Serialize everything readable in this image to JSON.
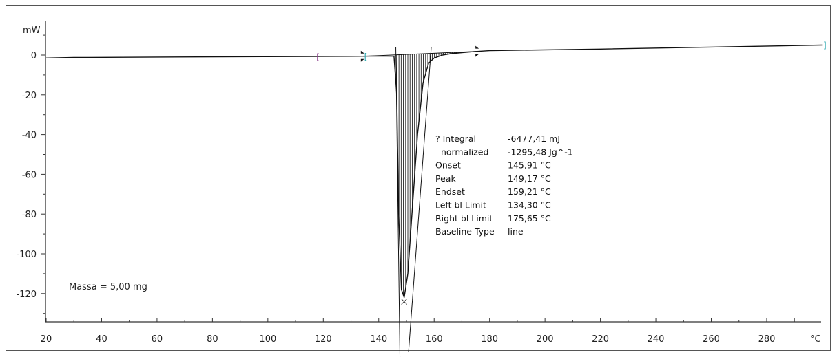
{
  "chart_data": {
    "type": "line",
    "xlabel": "°C",
    "ylabel": "mW",
    "xlim": [
      20,
      300
    ],
    "ylim": [
      -135,
      14
    ],
    "xticks": [
      20,
      40,
      60,
      80,
      100,
      120,
      140,
      160,
      180,
      200,
      220,
      240,
      260,
      280
    ],
    "yticks": [
      0,
      -20,
      -40,
      -60,
      -80,
      -100,
      -120
    ],
    "grid": false,
    "series": [
      {
        "x": [
          20,
          30,
          60,
          100,
          134,
          140,
          145.5,
          146.5,
          147.2,
          148.2,
          149.17,
          150.5,
          152,
          154,
          156,
          158,
          160,
          163,
          166,
          170,
          175,
          180,
          220,
          260,
          300
        ],
        "y": [
          -1.5,
          -1.2,
          -1.0,
          -0.8,
          -0.6,
          -0.5,
          -0.6,
          -20,
          -80,
          -118,
          -122,
          -110,
          -80,
          -40,
          -14,
          -4,
          -1.5,
          0,
          0.7,
          1.2,
          1.8,
          2.2,
          3,
          4,
          5
        ]
      }
    ],
    "annotations": {
      "mass": "Massa = 5,00 mg",
      "results": [
        {
          "label": "? Integral",
          "value": "-6477,41 mJ"
        },
        {
          "label": "  normalized",
          "value": "-1295,48 Jg^-1"
        },
        {
          "label": "Onset",
          "value": "145,91 °C"
        },
        {
          "label": "Peak",
          "value": "149,17 °C"
        },
        {
          "label": "Endset",
          "value": "159,21 °C"
        },
        {
          "label": "Left bl Limit",
          "value": "134,30 °C"
        },
        {
          "label": "Right bl Limit",
          "value": "175,65 °C"
        },
        {
          "label": "Baseline Type",
          "value": "line"
        }
      ],
      "peak_x": 149.17,
      "onset_x": 145.91,
      "endset_x": 159.21,
      "left_bl_limit": 134.3,
      "right_bl_limit": 175.65,
      "evaluation_limits": [
        118,
        135,
        300
      ]
    },
    "colors": {
      "curve": "#111111",
      "left_limit_marker": "#8a3a8a",
      "right_limit_marker": "#2aa8b0"
    }
  }
}
